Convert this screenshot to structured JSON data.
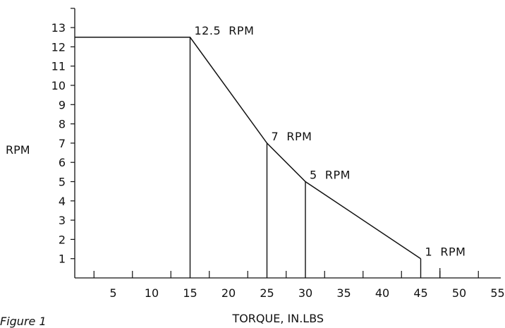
{
  "caption": "Figure 1",
  "chart_data": {
    "type": "line",
    "title": "",
    "xlabel": "TORQUE, IN.LBS",
    "ylabel": "RPM",
    "xlim": [
      0,
      55
    ],
    "ylim": [
      0,
      14
    ],
    "x_ticks": [
      5,
      10,
      15,
      20,
      25,
      30,
      35,
      40,
      45,
      50,
      55
    ],
    "y_ticks": [
      1,
      2,
      3,
      4,
      5,
      6,
      7,
      8,
      9,
      10,
      11,
      12,
      13
    ],
    "grid": false,
    "series": [
      {
        "x": [
          0,
          15,
          25,
          30,
          45
        ],
        "y": [
          12.5,
          12.5,
          7,
          5,
          1
        ]
      }
    ],
    "annotations": [
      {
        "text": "12.5  RPM",
        "x": 15,
        "y": 12.5
      },
      {
        "text": "7  RPM",
        "x": 25,
        "y": 7
      },
      {
        "text": "5  RPM",
        "x": 30,
        "y": 5
      },
      {
        "text": "1  RPM",
        "x": 45,
        "y": 1
      }
    ],
    "drop_lines_x": [
      15,
      25,
      30,
      45
    ],
    "extra_tick_x": 47.5,
    "line_color": "#111111"
  }
}
